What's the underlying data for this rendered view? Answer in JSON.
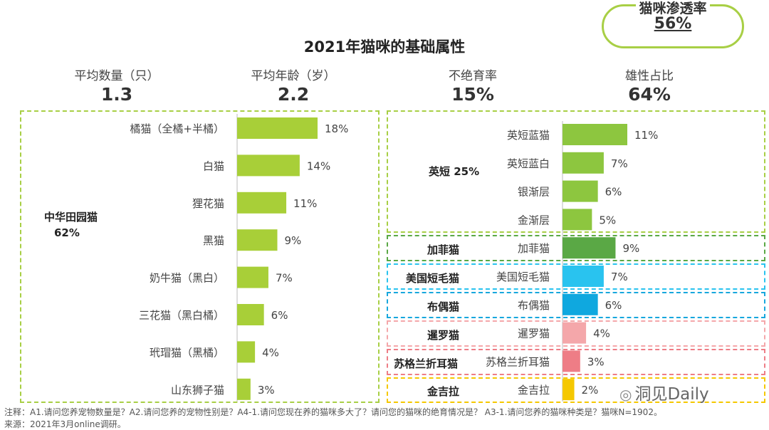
{
  "badge": {
    "title": "猫咪渗透率",
    "value": "56%"
  },
  "chart_data": {
    "title": "2021年猫咪的基础属性",
    "kpis": [
      {
        "label": "平均数量（只）",
        "value": "1.3"
      },
      {
        "label": "平均年龄（岁）",
        "value": "2.2"
      },
      {
        "label": "不绝育率",
        "value": "15%"
      },
      {
        "label": "雄性占比",
        "value": "64%"
      }
    ],
    "left": {
      "type": "bar",
      "group_label": "中华田园猫",
      "group_value": "62%",
      "categories": [
        "橘猫（全橘+半橘）",
        "白猫",
        "狸花猫",
        "黑猫",
        "奶牛猫（黑白）",
        "三花猫（黑白橘）",
        "玳瑁猫（黑橘）",
        "山东狮子猫"
      ],
      "values": [
        18,
        14,
        11,
        9,
        7,
        6,
        4,
        3
      ],
      "labels": [
        "18%",
        "14%",
        "11%",
        "9%",
        "7%",
        "6%",
        "4%",
        "3%"
      ],
      "color": "#a8cf38"
    },
    "right": {
      "type": "bar",
      "groups": [
        {
          "name": "英短 25%",
          "border": "#a8cf45",
          "items": [
            {
              "label": "英短蓝猫",
              "value": 11,
              "text": "11%",
              "color": "#8dc63f"
            },
            {
              "label": "英短蓝白",
              "value": 7,
              "text": "7%",
              "color": "#8dc63f"
            },
            {
              "label": "银渐层",
              "value": 6,
              "text": "6%",
              "color": "#8dc63f"
            },
            {
              "label": "金渐层",
              "value": 5,
              "text": "5%",
              "color": "#8dc63f"
            }
          ]
        },
        {
          "name": "加菲猫",
          "border": "#5aa845",
          "items": [
            {
              "label": "加菲猫",
              "value": 9,
              "text": "9%",
              "color": "#5aa845"
            }
          ]
        },
        {
          "name": "美国短毛猫",
          "border": "#29c3ef",
          "items": [
            {
              "label": "美国短毛猫",
              "value": 7,
              "text": "7%",
              "color": "#29c3ef"
            }
          ]
        },
        {
          "name": "布偶猫",
          "border": "#17a7dd",
          "items": [
            {
              "label": "布偶猫",
              "value": 6,
              "text": "6%",
              "color": "#0fa8df"
            }
          ]
        },
        {
          "name": "暹罗猫",
          "border": "#f4a7aa",
          "items": [
            {
              "label": "暹罗猫",
              "value": 4,
              "text": "4%",
              "color": "#f4a7aa"
            }
          ]
        },
        {
          "name": "苏格兰折耳猫",
          "border": "#ee7d86",
          "items": [
            {
              "label": "苏格兰折耳猫",
              "value": 3,
              "text": "3%",
              "color": "#ee7d86"
            }
          ]
        },
        {
          "name": "金吉拉",
          "border": "#f5c800",
          "items": [
            {
              "label": "金吉拉",
              "value": 2,
              "text": "2%",
              "color": "#f5c800"
            }
          ]
        }
      ]
    }
  },
  "footer": {
    "note": "注释：A1.请问您养宠物数量是？A2.请问您养的宠物性别是？A4-1.请问您现在养的猫咪多大了？请问您的猫咪的绝育情况是？ A3-1.请问您养的猫咪种类是？猫咪N=1902。",
    "source": "来源：2021年3月online调研。"
  },
  "logo": {
    "text": "洞见Daily"
  }
}
